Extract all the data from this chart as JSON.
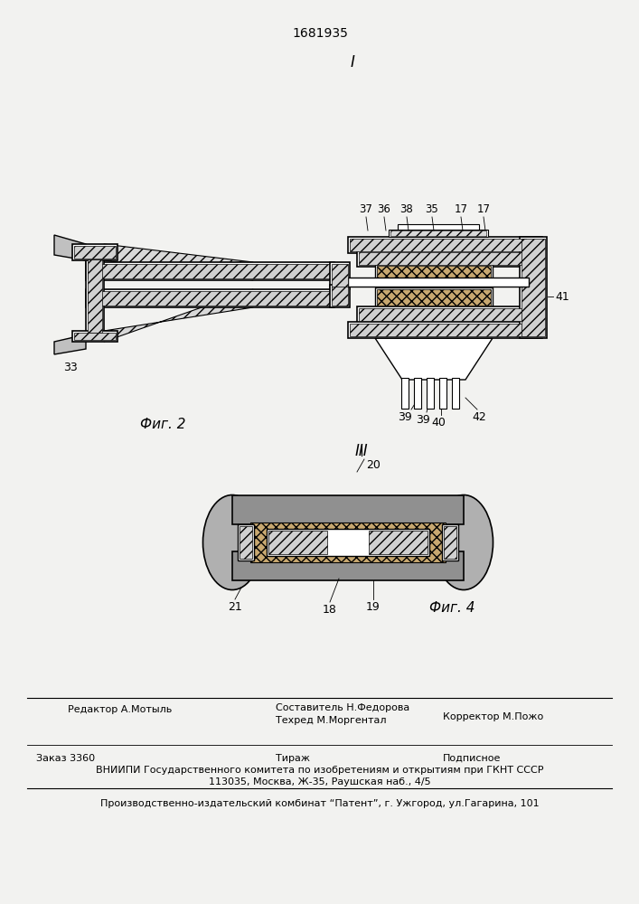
{
  "patent_number": "1681935",
  "bg_color": "#f2f2f0",
  "fig_label1": "I",
  "fig_label2": "Фиг. 2",
  "fig_label3": "III",
  "fig_label4": "Фиг. 4",
  "footer": {
    "editor": "Редактор А.Мотыль",
    "composer": "Составитель Н.Федорова",
    "techred": "Техред М.Моргентал",
    "corrector": "Корректор М.Пожо",
    "order": "Заказ 3360",
    "tirazh": "Тираж",
    "podpisnoe": "Подписное",
    "vniip1": "ВНИИПИ Государственного комитета по изобретениям и открытиям при ГКНТ СССР",
    "vniip2": "113035, Москва, Ж-35, Раушская наб., 4/5",
    "publisher": "Производственно-издательский комбинат “Патент”, г. Ужгород, ул.Гагарина, 101"
  }
}
